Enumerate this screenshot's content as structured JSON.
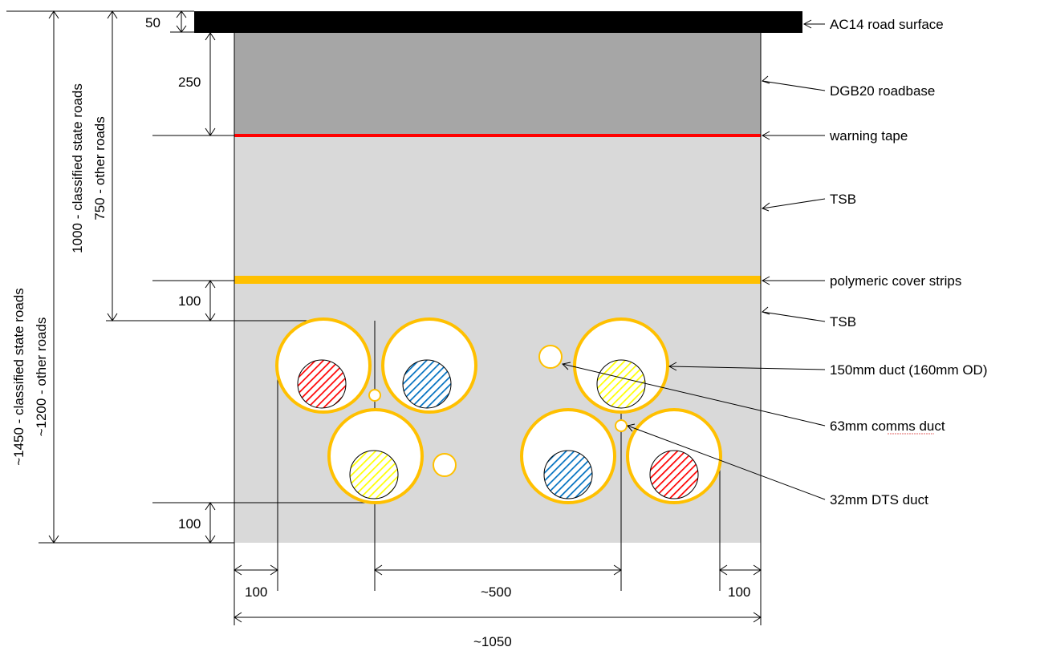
{
  "layers": {
    "road_surface": "AC14 road surface",
    "roadbase": "DGB20 roadbase",
    "warning_tape": "warning tape",
    "tsb_upper": "TSB",
    "cover_strips": "polymeric cover strips",
    "tsb_lower": "TSB"
  },
  "ducts": {
    "main": "150mm duct (160mm OD)",
    "comms": "63mm comms duct",
    "dts": "32mm DTS duct"
  },
  "dimensions": {
    "surface": "50",
    "roadbase": "250",
    "cover_gap": "100",
    "bottom_gap": "100",
    "left_offset": "100",
    "right_offset": "100",
    "centre_spacing": "~500",
    "total_width": "~1050",
    "cover_depth_line1": "1000 - classified state roads",
    "cover_depth_line2": "750 - other roads",
    "total_depth_line1": "~1450 - classified state roads",
    "total_depth_line2": "~1200 - other roads"
  },
  "colors": {
    "road_surface": "#000000",
    "roadbase": "#a6a6a6",
    "trench_fill": "#d9d9d9",
    "warning_tape": "#ff0000",
    "cover_strips": "#ffc000",
    "phase_red": "#ff0000",
    "phase_blue": "#0070c0",
    "phase_yellow": "#ffff00"
  }
}
